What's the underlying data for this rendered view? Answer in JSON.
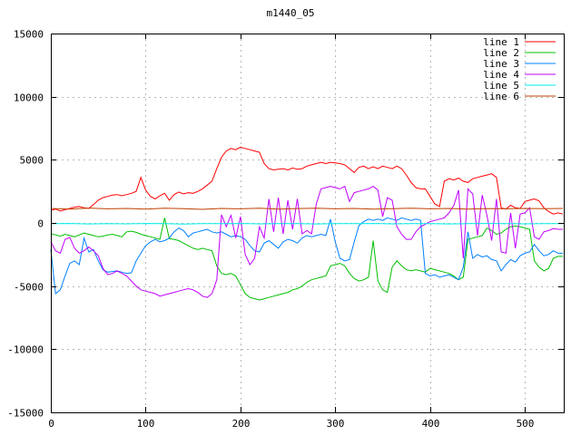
{
  "chart_data": {
    "type": "line",
    "title": "m1440_05",
    "xlabel": "",
    "ylabel": "",
    "xlim": [
      0,
      541
    ],
    "ylim": [
      -15000,
      15000
    ],
    "xticks": [
      0,
      100,
      200,
      300,
      400,
      500
    ],
    "yticks": [
      -15000,
      -10000,
      -5000,
      0,
      5000,
      10000,
      15000
    ],
    "grid": true,
    "grid_color": "#b8b8b8",
    "border_color": "#000000",
    "background": "#ffffff",
    "legend_position": "top-right-inside",
    "series": [
      {
        "name": "line 1",
        "color": "#ff0000",
        "x_step": 5,
        "values": [
          1000,
          1100,
          950,
          1050,
          1150,
          1250,
          1300,
          1200,
          1150,
          1450,
          1800,
          2000,
          2100,
          2200,
          2250,
          2150,
          2250,
          2350,
          2500,
          3600,
          2600,
          2100,
          1900,
          2150,
          2350,
          1800,
          2250,
          2450,
          2300,
          2400,
          2350,
          2500,
          2700,
          3000,
          3300,
          4300,
          5200,
          5700,
          5900,
          5800,
          6000,
          5900,
          5800,
          5700,
          5600,
          4700,
          4300,
          4200,
          4250,
          4300,
          4200,
          4350,
          4250,
          4300,
          4500,
          4600,
          4700,
          4800,
          4700,
          4800,
          4750,
          4700,
          4600,
          4300,
          4000,
          4400,
          4500,
          4300,
          4450,
          4300,
          4500,
          4400,
          4300,
          4500,
          4300,
          3800,
          3200,
          2800,
          2700,
          2700,
          2100,
          1500,
          1300,
          3300,
          3500,
          3400,
          3550,
          3300,
          3200,
          3500,
          3600,
          3700,
          3800,
          3900,
          3600,
          1200,
          1100,
          1400,
          1200,
          1150,
          1700,
          1800,
          1900,
          1750,
          1200,
          900,
          700,
          800,
          700
        ]
      },
      {
        "name": "line 2",
        "color": "#00c000",
        "x_step": 5,
        "values": [
          -860,
          -950,
          -1050,
          -900,
          -1000,
          -1100,
          -950,
          -800,
          -900,
          -1000,
          -1100,
          -1050,
          -950,
          -900,
          -1000,
          -1100,
          -700,
          -650,
          -750,
          -900,
          -1000,
          -1100,
          -1200,
          -1300,
          400,
          -1250,
          -1300,
          -1400,
          -1600,
          -1800,
          -2000,
          -2100,
          -2000,
          -2100,
          -2200,
          -3400,
          -4000,
          -4100,
          -4000,
          -4200,
          -4900,
          -5600,
          -5900,
          -6000,
          -6100,
          -6000,
          -5900,
          -5800,
          -5700,
          -5600,
          -5500,
          -5300,
          -5200,
          -5000,
          -4700,
          -4500,
          -4400,
          -4300,
          -4200,
          -3400,
          -3300,
          -3200,
          -3400,
          -4000,
          -4400,
          -4600,
          -4500,
          -4300,
          -1400,
          -4600,
          -5300,
          -5500,
          -3500,
          -3000,
          -3400,
          -3700,
          -3800,
          -3700,
          -3800,
          -3900,
          -3600,
          -3700,
          -3800,
          -3900,
          -4000,
          -4200,
          -4500,
          -4300,
          -1300,
          -1200,
          -1100,
          -1000,
          -400,
          -600,
          -900,
          -800,
          -500,
          -300,
          -250,
          -300,
          -400,
          -500,
          -3000,
          -3500,
          -3800,
          -3600,
          -2800,
          -2650,
          -2650
        ]
      },
      {
        "name": "line 3",
        "color": "#0080ff",
        "x_step": 5,
        "values": [
          -2100,
          -5600,
          -5300,
          -4200,
          -3200,
          -3000,
          -3300,
          -1200,
          -2300,
          -2100,
          -3000,
          -3700,
          -3900,
          -3850,
          -3800,
          -3900,
          -4000,
          -3950,
          -3000,
          -2400,
          -1800,
          -1500,
          -1300,
          -1500,
          -1400,
          -1200,
          -700,
          -400,
          -600,
          -1100,
          -800,
          -700,
          -600,
          -500,
          -700,
          -800,
          -700,
          -900,
          -1100,
          -1000,
          -1100,
          -1300,
          -1800,
          -2200,
          -2300,
          -1600,
          -1400,
          -1700,
          -2000,
          -1500,
          -1300,
          -1400,
          -1600,
          -1200,
          -1000,
          -1100,
          -1000,
          -900,
          -1000,
          300,
          -1500,
          -2800,
          -3000,
          -2900,
          -1500,
          -200,
          100,
          300,
          200,
          300,
          200,
          400,
          300,
          200,
          400,
          300,
          200,
          300,
          200,
          -4000,
          -4200,
          -4100,
          -4300,
          -4200,
          -4100,
          -4300,
          -4500,
          -3500,
          -700,
          -2800,
          -2500,
          -2700,
          -2600,
          -2900,
          -3000,
          -3800,
          -3300,
          -2900,
          -3100,
          -2600,
          -2400,
          -2300,
          -1700,
          -2200,
          -2600,
          -2500,
          -2200,
          -2400,
          -2400
        ]
      },
      {
        "name": "line 4",
        "color": "#c000ff",
        "x_step": 5,
        "values": [
          -1500,
          -2200,
          -2400,
          -1300,
          -1150,
          -2000,
          -2400,
          -2200,
          -1900,
          -2200,
          -2600,
          -3600,
          -4100,
          -4000,
          -3800,
          -4000,
          -4200,
          -4600,
          -5000,
          -5300,
          -5400,
          -5500,
          -5600,
          -5800,
          -5700,
          -5600,
          -5500,
          -5400,
          -5300,
          -5200,
          -5300,
          -5500,
          -5800,
          -5900,
          -5600,
          -4500,
          650,
          -300,
          600,
          -1200,
          500,
          -2500,
          -3300,
          -2800,
          -300,
          -1200,
          1900,
          -700,
          2000,
          -860,
          1800,
          -500,
          1900,
          -860,
          -600,
          -860,
          1500,
          2700,
          2800,
          2900,
          2800,
          2700,
          2900,
          1700,
          2400,
          2500,
          2600,
          2700,
          2900,
          2600,
          500,
          2000,
          1800,
          -300,
          -900,
          -1300,
          -1300,
          -700,
          -300,
          -100,
          100,
          200,
          300,
          400,
          800,
          1400,
          2600,
          -2800,
          2700,
          2300,
          -1000,
          2200,
          600,
          -1400,
          1900,
          -2300,
          -2400,
          800,
          -2000,
          700,
          800,
          1200,
          -1100,
          -1300,
          -700,
          -600,
          -450,
          -500,
          -500
        ]
      },
      {
        "name": "line 5",
        "color": "#00eeee",
        "x_step": 20,
        "values": [
          -60,
          -40,
          -80,
          -50,
          -70,
          -40,
          -60,
          -90,
          -50,
          -60,
          -40,
          -70,
          -50,
          -60,
          -80,
          -50,
          -60,
          -40,
          -70,
          -50,
          -60,
          -80,
          -50,
          -40,
          -60,
          -70,
          -50,
          -60
        ]
      },
      {
        "name": "line 6",
        "color": "#c04000",
        "x_step": 20,
        "values": [
          1150,
          1100,
          1180,
          1120,
          1150,
          1100,
          1160,
          1130,
          1080,
          1150,
          1120,
          1160,
          1100,
          1140,
          1170,
          1120,
          1150,
          1100,
          1130,
          1160,
          1120,
          1150,
          1100,
          1140,
          1120,
          1150,
          1130,
          1150
        ]
      }
    ]
  }
}
